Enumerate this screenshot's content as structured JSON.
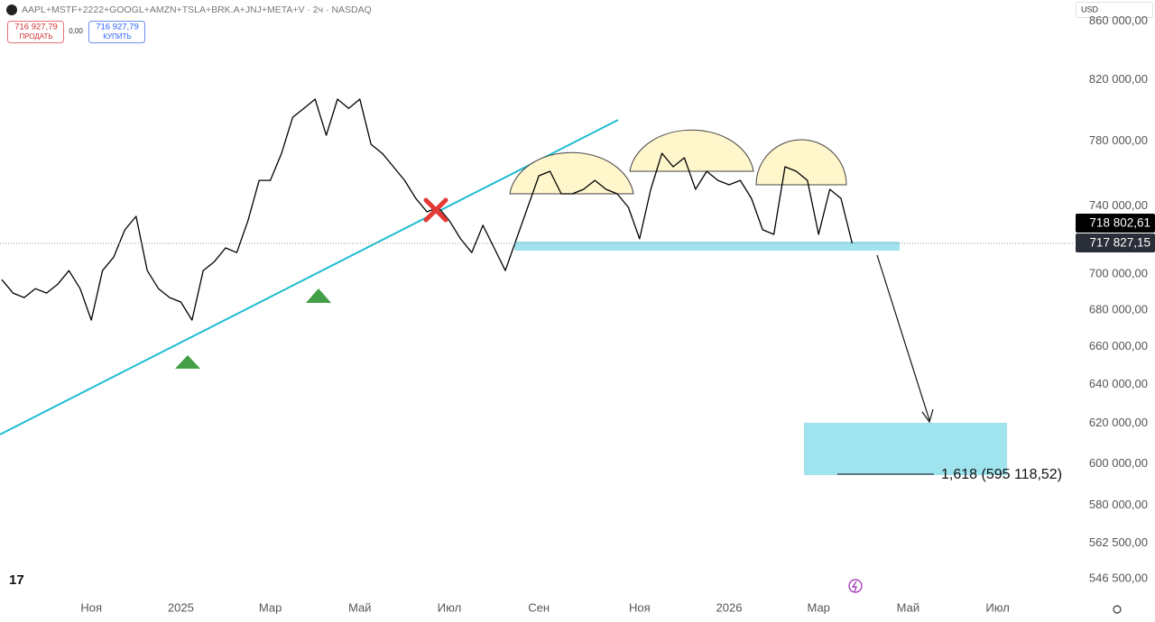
{
  "chart_data": {
    "type": "line",
    "title": "AAPL+MSTF+2222+GOOGL+AMZN+TSLA+BRK.A+JNJ+META+V · 2ч · NASDAQ",
    "sell": {
      "price": "716 927,79",
      "label": "ПРОДАТЬ"
    },
    "spread": "0,00",
    "buy": {
      "price": "716 927,79",
      "label": "КУПИТЬ"
    },
    "currency": "USD",
    "annotations": [
      "1,618 (595 118,52)"
    ],
    "color": "#000000",
    "log_scale": true,
    "grid": false,
    "categories": [
      null,
      null,
      null,
      null,
      null,
      null,
      null,
      null,
      "Ноя",
      null,
      null,
      null,
      null,
      null,
      null,
      null,
      "2025",
      null,
      null,
      null,
      null,
      null,
      null,
      null,
      "Мар",
      null,
      null,
      null,
      null,
      null,
      null,
      null,
      "Май",
      null,
      null,
      null,
      null,
      null,
      null,
      null,
      "Июл",
      null,
      null,
      null,
      null,
      null,
      null,
      null,
      "Сен",
      null,
      null,
      null,
      null,
      null,
      null,
      null,
      null,
      "Ноя",
      null,
      null,
      null,
      null,
      null,
      null,
      null,
      "2026",
      null,
      null,
      null,
      null,
      null,
      null,
      null,
      "Мар",
      null,
      null,
      null,
      null,
      null,
      null,
      null,
      "Май",
      null,
      null,
      null,
      null,
      null,
      null,
      null,
      "Июл",
      null,
      null,
      null,
      null,
      null,
      null
    ],
    "values": [
      697000,
      689400,
      686900,
      691900,
      689400,
      694400,
      702100,
      691900,
      674400,
      702100,
      709900,
      725800,
      733800,
      702100,
      691900,
      686900,
      684400,
      674400,
      702100,
      707300,
      715200,
      712500,
      731200,
      755600,
      755600,
      772400,
      795400,
      801200,
      807200,
      783800,
      807200,
      801200,
      807200,
      778100,
      772400,
      764000,
      755600,
      744600,
      736500,
      739200,
      731200,
      720500,
      712500,
      728500,
      715200,
      702100,
      720500,
      739200,
      758400,
      761200,
      747400,
      747400,
      750100,
      755600,
      750100,
      747400,
      739200,
      720500,
      750100,
      772400,
      764000,
      769600,
      750100,
      761200,
      755600,
      752900,
      755600,
      744600,
      725800,
      723100,
      764000,
      761200,
      755600,
      723100,
      750100,
      744600,
      717827.15,
      null,
      null,
      null,
      null,
      null,
      null,
      null,
      null,
      null,
      null,
      null,
      null,
      null,
      null,
      null,
      null,
      null,
      null,
      null
    ],
    "price_tags": [
      {
        "value": 718802.61,
        "label": "718 802,61"
      },
      {
        "value": 717827.15,
        "label": "717 827,15"
      }
    ],
    "ylim": [
      538500,
      875000
    ],
    "yticks": [
      {
        "value": 860000,
        "label": "860 000,00"
      },
      {
        "value": 820000,
        "label": "820 000,00"
      },
      {
        "value": 780000,
        "label": "780 000,00"
      },
      {
        "value": 740000,
        "label": "740 000,00"
      },
      {
        "value": 700000,
        "label": "700 000,00"
      },
      {
        "value": 680000,
        "label": "680 000,00"
      },
      {
        "value": 660000,
        "label": "660 000,00"
      },
      {
        "value": 640000,
        "label": "640 000,00"
      },
      {
        "value": 620000,
        "label": "620 000,00"
      },
      {
        "value": 600000,
        "label": "600 000,00"
      },
      {
        "value": 580000,
        "label": "580 000,00"
      },
      {
        "value": 562500,
        "label": "562 500,00"
      },
      {
        "value": 546500,
        "label": "546 500,00"
      }
    ]
  }
}
